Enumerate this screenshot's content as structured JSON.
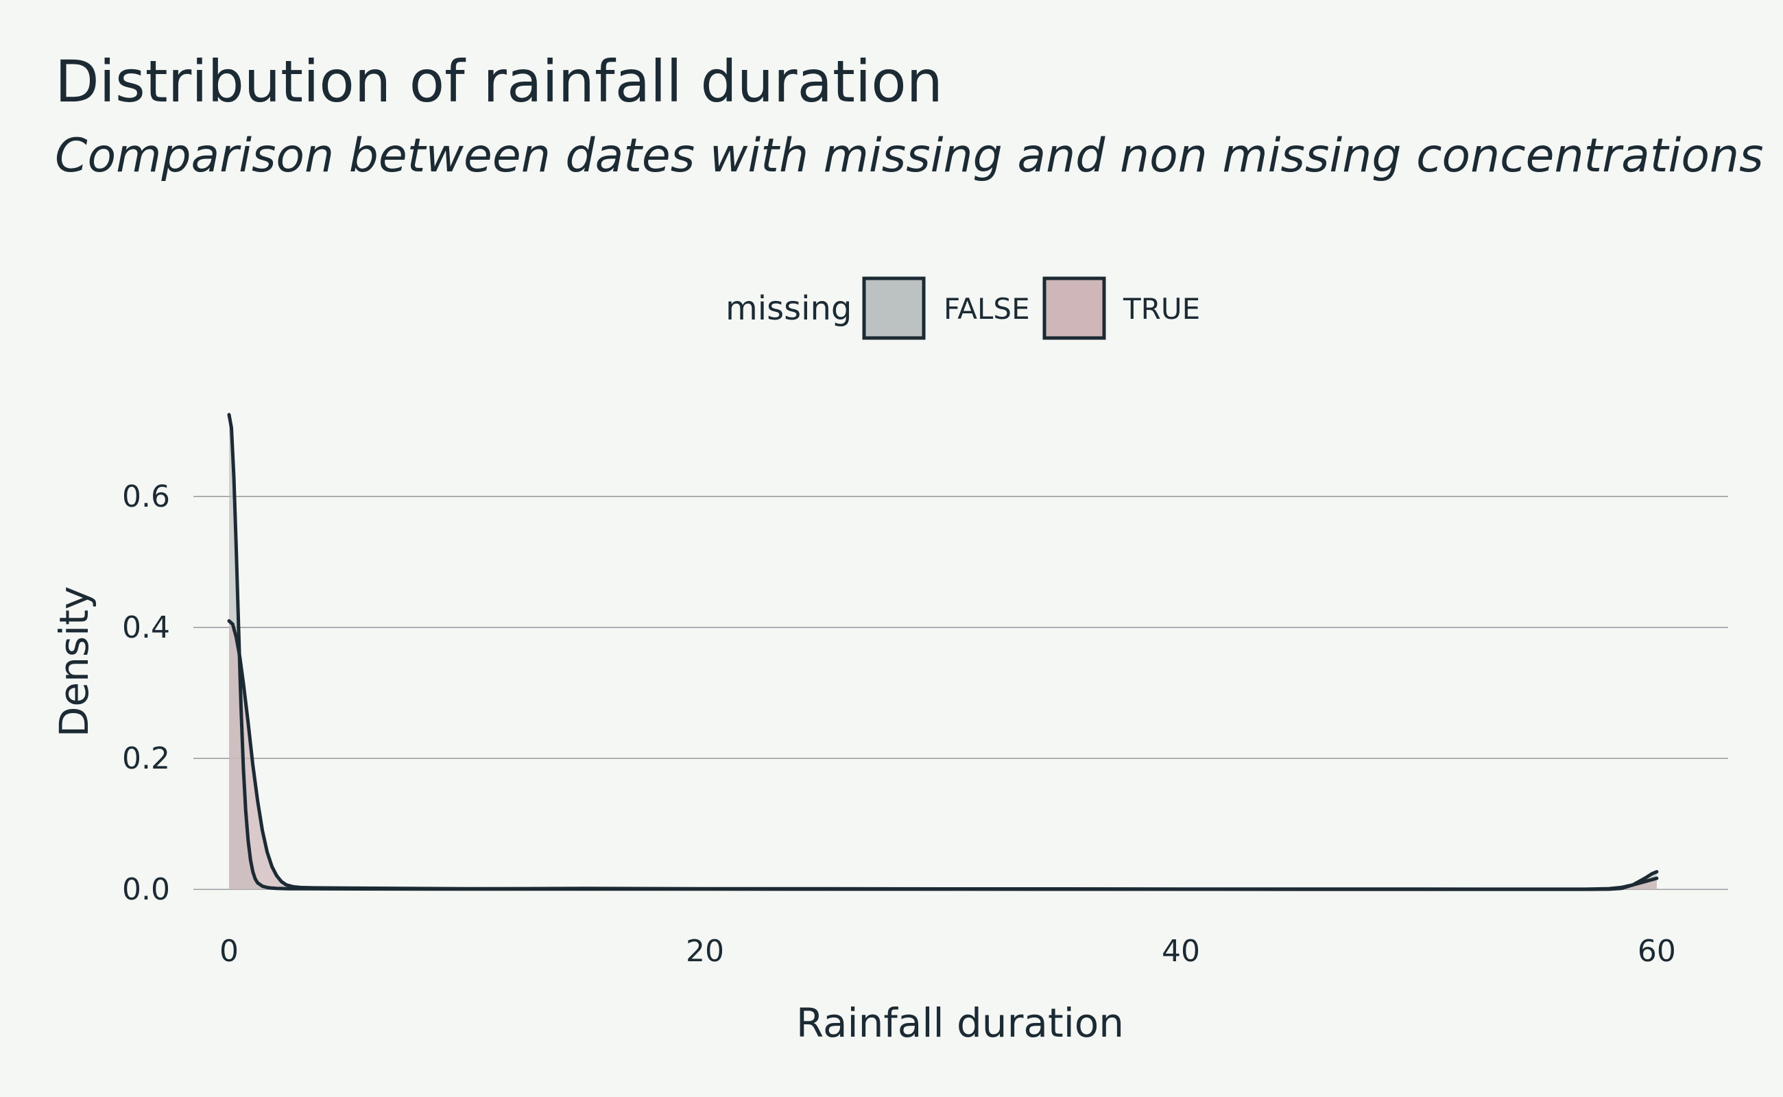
{
  "chart_data": {
    "type": "area",
    "title": "Distribution of rainfall duration",
    "subtitle": "Comparison between dates with missing and non missing concentrations",
    "xlabel": "Rainfall duration",
    "ylabel": "Density",
    "xlim": [
      -1.5,
      63
    ],
    "ylim": [
      -0.05,
      0.73
    ],
    "x_ticks": [
      0,
      20,
      40,
      60
    ],
    "y_ticks": [
      0.0,
      0.2,
      0.4,
      0.6
    ],
    "x_tick_labels": [
      "0",
      "20",
      "40",
      "60"
    ],
    "y_tick_labels": [
      "0.0",
      "0.2",
      "0.4",
      "0.6"
    ],
    "grid": "horizontal",
    "legend": {
      "title": "missing",
      "position": "top",
      "items": [
        {
          "label": "FALSE",
          "color": "#bcc2c1"
        },
        {
          "label": "TRUE",
          "color": "#cfb6b9"
        }
      ]
    },
    "series": [
      {
        "name": "FALSE",
        "fill": "#bcc2c1",
        "x": [
          0,
          0.1,
          0.2,
          0.3,
          0.4,
          0.5,
          0.6,
          0.7,
          0.8,
          0.9,
          1.0,
          1.1,
          1.2,
          1.4,
          1.6,
          1.8,
          2.0,
          2.5,
          3,
          5,
          10,
          15,
          20,
          25,
          30,
          35,
          40,
          45,
          50,
          55,
          57,
          58,
          58.5,
          59,
          59.5,
          59.8,
          60
        ],
        "y": [
          0.725,
          0.705,
          0.63,
          0.52,
          0.4,
          0.28,
          0.185,
          0.12,
          0.075,
          0.045,
          0.027,
          0.016,
          0.01,
          0.005,
          0.003,
          0.002,
          0.0015,
          0.001,
          0.001,
          0.0008,
          0.0005,
          0.0006,
          0.0006,
          0.0004,
          0.0004,
          0.0003,
          0.0003,
          0.0002,
          0.0002,
          0.0002,
          0.0002,
          0.0004,
          0.0015,
          0.007,
          0.017,
          0.024,
          0.027
        ]
      },
      {
        "name": "TRUE",
        "fill": "#cfb6b9",
        "x": [
          0,
          0.15,
          0.3,
          0.45,
          0.6,
          0.8,
          1.0,
          1.2,
          1.4,
          1.6,
          1.8,
          2.0,
          2.2,
          2.4,
          2.7,
          3.0,
          3.5,
          5,
          10,
          15,
          20,
          25,
          30,
          35,
          40,
          45,
          50,
          55,
          57,
          58,
          58.5,
          59,
          59.5,
          60
        ],
        "y": [
          0.41,
          0.405,
          0.385,
          0.355,
          0.315,
          0.255,
          0.19,
          0.135,
          0.09,
          0.057,
          0.035,
          0.021,
          0.012,
          0.007,
          0.004,
          0.003,
          0.0025,
          0.002,
          0.001,
          0.0015,
          0.001,
          0.001,
          0.0008,
          0.0008,
          0.0006,
          0.0005,
          0.0005,
          0.0004,
          0.0004,
          0.0012,
          0.003,
          0.007,
          0.012,
          0.017
        ]
      }
    ]
  }
}
